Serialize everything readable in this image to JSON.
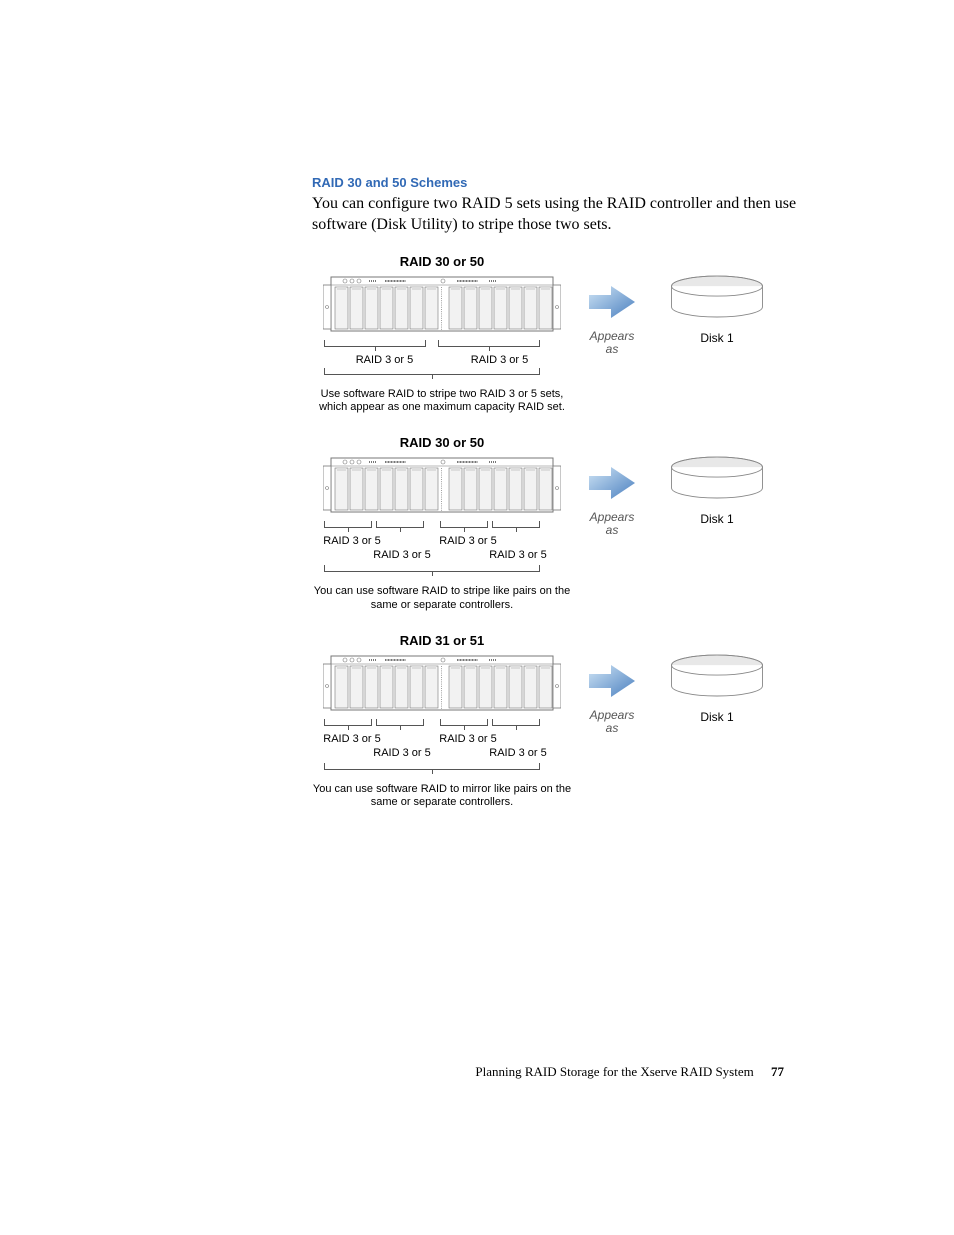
{
  "heading": "RAID 30 and 50 Schemes",
  "intro": "You can configure two RAID 5 sets using the RAID controller and then use software (Disk Utility) to stripe those two sets.",
  "figures": [
    {
      "title": "RAID 30 or 50",
      "mode": "two",
      "labels": [
        "RAID 3 or 5",
        "RAID 3 or 5"
      ],
      "caption": "Use software RAID to stripe two RAID 3 or 5 sets, which appear as one maximum capacity RAID set.",
      "appears": "Appears as",
      "disk": "Disk 1"
    },
    {
      "title": "RAID 30 or 50",
      "mode": "four",
      "labels_top": [
        "RAID 3 or 5",
        "RAID 3 or 5"
      ],
      "labels_bot": [
        "RAID 3 or 5",
        "RAID 3 or 5"
      ],
      "caption": "You can use software RAID to stripe like pairs on the same or separate controllers.",
      "appears": "Appears as",
      "disk": "Disk 1"
    },
    {
      "title": "RAID 31 or 51",
      "mode": "four",
      "labels_top": [
        "RAID 3 or 5",
        "RAID 3 or 5"
      ],
      "labels_bot": [
        "RAID 3 or 5",
        "RAID 3 or 5"
      ],
      "caption": "You can use software RAID to mirror like pairs on the same or separate controllers.",
      "appears": "Appears as",
      "disk": "Disk 1"
    }
  ],
  "colors": {
    "heading": "#3169b5",
    "arrow_light": "#cfe4f5",
    "arrow_dark": "#4a7fbf",
    "enclosure_stroke": "#777777",
    "enclosure_fill": "#ffffff",
    "bay_fill": "#f2f2f2",
    "cyl_top": "#e8e8e8",
    "cyl_side": "#ffffff"
  },
  "footer_text": "Planning RAID Storage for the Xserve RAID System",
  "page_number": "77"
}
